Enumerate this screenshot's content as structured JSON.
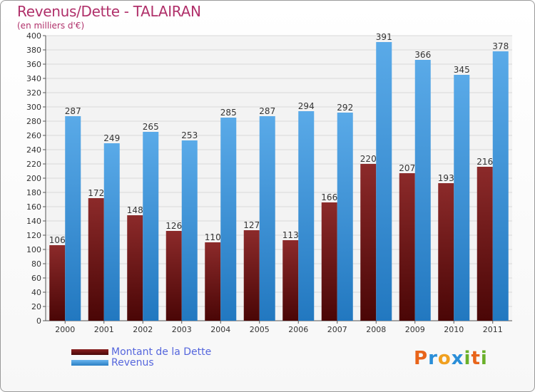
{
  "title": "Revenus/Dette - TALAIRAN",
  "subtitle": "(en milliers d'€)",
  "logo": {
    "text": "Proxiti",
    "letters": [
      "P",
      "r",
      "o",
      "x",
      "i",
      "t",
      "i"
    ],
    "colors": [
      "#e8641a",
      "#2a8ed8",
      "#f0a020",
      "#2a8ed8",
      "#6ab02a",
      "#e8641a",
      "#6ab02a"
    ]
  },
  "colors": {
    "dette": "#7a1515",
    "revenus": "#3a96dc",
    "title": "#b0306a",
    "legend_text": "#5566dd"
  },
  "chart_data": {
    "type": "bar",
    "categories": [
      "2000",
      "2001",
      "2002",
      "2003",
      "2004",
      "2005",
      "2006",
      "2007",
      "2008",
      "2009",
      "2010",
      "2011"
    ],
    "series": [
      {
        "name": "Montant de la Dette",
        "values": [
          106,
          172,
          148,
          126,
          110,
          127,
          113,
          166,
          220,
          207,
          193,
          216
        ]
      },
      {
        "name": "Revenus",
        "values": [
          287,
          249,
          265,
          253,
          285,
          287,
          294,
          292,
          391,
          366,
          345,
          378
        ]
      }
    ],
    "ylim": [
      0,
      400
    ],
    "yticks": [
      0,
      20,
      40,
      60,
      80,
      100,
      120,
      140,
      160,
      180,
      200,
      220,
      240,
      260,
      280,
      300,
      320,
      340,
      360,
      380,
      400
    ],
    "grid": true,
    "legend_position": "bottom-left"
  }
}
